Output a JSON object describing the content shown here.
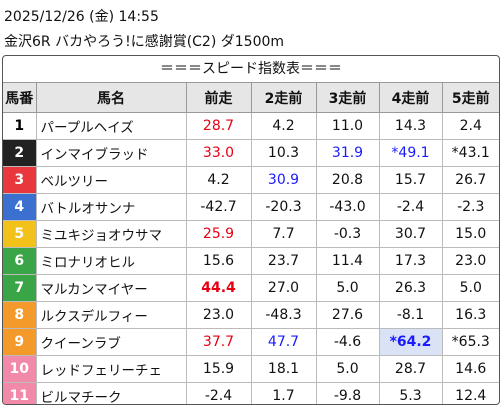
{
  "header": {
    "datetime": "2025/12/26 (金) 14:55",
    "race": "金沢6R バカやろう!に感謝賞(C2) ダ1500m"
  },
  "table": {
    "title": "＝＝＝スピード指数表＝＝＝",
    "columns": [
      "馬番",
      "馬名",
      "前走",
      "2走前",
      "3走前",
      "4走前",
      "5走前"
    ],
    "rows": [
      {
        "number": "1",
        "frame_color": "#ffffff",
        "number_color": "#000000",
        "name": "パープルヘイズ",
        "cells": [
          {
            "text": "28.7",
            "color": "#e60012"
          },
          {
            "text": "4.2"
          },
          {
            "text": "11.0"
          },
          {
            "text": "14.3"
          },
          {
            "text": "2.4"
          }
        ]
      },
      {
        "number": "2",
        "frame_color": "#222222",
        "number_color": "#ffffff",
        "name": "インマイブラッド",
        "cells": [
          {
            "text": "33.0",
            "color": "#e60012"
          },
          {
            "text": "10.3"
          },
          {
            "text": "31.9",
            "color": "#1a1aff"
          },
          {
            "text": "*49.1",
            "color": "#1a1aff"
          },
          {
            "text": "*43.1"
          }
        ]
      },
      {
        "number": "3",
        "frame_color": "#e8383d",
        "number_color": "#ffffff",
        "name": "ベルツリー",
        "cells": [
          {
            "text": "4.2"
          },
          {
            "text": "30.9",
            "color": "#1a1aff"
          },
          {
            "text": "20.8"
          },
          {
            "text": "15.7"
          },
          {
            "text": "26.7"
          }
        ]
      },
      {
        "number": "4",
        "frame_color": "#3b6fd0",
        "number_color": "#ffffff",
        "name": "バトルオサンナ",
        "cells": [
          {
            "text": "-42.7"
          },
          {
            "text": "-20.3"
          },
          {
            "text": "-43.0"
          },
          {
            "text": "-2.4"
          },
          {
            "text": "-2.3"
          }
        ]
      },
      {
        "number": "5",
        "frame_color": "#f2c11a",
        "number_color": "#ffffff",
        "name": "ミユキジョオウサマ",
        "cells": [
          {
            "text": "25.9",
            "color": "#e60012"
          },
          {
            "text": "7.7"
          },
          {
            "text": "-0.3"
          },
          {
            "text": "30.7"
          },
          {
            "text": "15.0"
          }
        ]
      },
      {
        "number": "6",
        "frame_color": "#3aa547",
        "number_color": "#ffffff",
        "name": "ミロナリオヒル",
        "cells": [
          {
            "text": "15.6"
          },
          {
            "text": "23.7"
          },
          {
            "text": "11.4"
          },
          {
            "text": "17.3"
          },
          {
            "text": "23.0"
          }
        ]
      },
      {
        "number": "7",
        "frame_color": "#3aa547",
        "number_color": "#ffffff",
        "name": "マルカンマイヤー",
        "cells": [
          {
            "text": "44.4",
            "color": "#e60012",
            "bold": true
          },
          {
            "text": "27.0"
          },
          {
            "text": "5.0"
          },
          {
            "text": "26.3"
          },
          {
            "text": "5.0"
          }
        ]
      },
      {
        "number": "8",
        "frame_color": "#f39a2b",
        "number_color": "#ffffff",
        "name": "ルクスデルフィー",
        "cells": [
          {
            "text": "23.0"
          },
          {
            "text": "-48.3"
          },
          {
            "text": "27.6"
          },
          {
            "text": "-8.1"
          },
          {
            "text": "16.3"
          }
        ]
      },
      {
        "number": "9",
        "frame_color": "#f39a2b",
        "number_color": "#ffffff",
        "name": "クイーンラブ",
        "cells": [
          {
            "text": "37.7",
            "color": "#e60012"
          },
          {
            "text": "47.7",
            "color": "#1a1aff"
          },
          {
            "text": "-4.6"
          },
          {
            "text": "*64.2",
            "color": "#1a1aff",
            "bold": true,
            "background": "#d9e3f5"
          },
          {
            "text": "*65.3"
          }
        ]
      },
      {
        "number": "10",
        "frame_color": "#f08aa8",
        "number_color": "#ffffff",
        "name": "レッドフェリーチェ",
        "cells": [
          {
            "text": "15.9"
          },
          {
            "text": "18.1"
          },
          {
            "text": "5.0"
          },
          {
            "text": "28.7"
          },
          {
            "text": "14.6"
          }
        ]
      },
      {
        "number": "11",
        "frame_color": "#f08aa8",
        "number_color": "#ffffff",
        "name": "ビルマチーク",
        "cells": [
          {
            "text": "-2.4"
          },
          {
            "text": "1.7"
          },
          {
            "text": "-9.8"
          },
          {
            "text": "5.3"
          },
          {
            "text": "12.4"
          }
        ]
      }
    ]
  }
}
